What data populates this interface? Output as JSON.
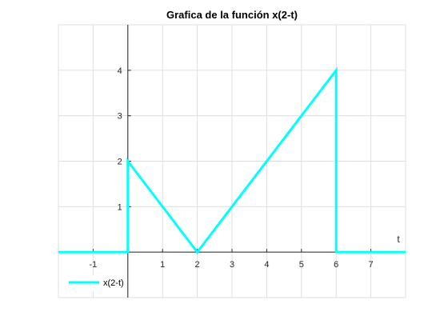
{
  "chart_data": {
    "type": "line",
    "title": "Grafica de la función x(2-t)",
    "xlabel": "t",
    "ylabel": "",
    "xlim": [
      -2,
      8
    ],
    "ylim": [
      -1,
      5
    ],
    "grid": true,
    "axes_origin": "origin",
    "x_ticks": [
      -1,
      1,
      2,
      3,
      4,
      5,
      6,
      7
    ],
    "y_ticks": [
      1,
      2,
      3,
      4
    ],
    "legend_position": "bottom-left",
    "series": [
      {
        "name": "x(2-t)",
        "color": "#00FFFF",
        "x": [
          -2,
          0,
          0,
          2,
          6,
          6,
          8
        ],
        "y": [
          0,
          0,
          2,
          0,
          4,
          0,
          0
        ]
      }
    ]
  }
}
